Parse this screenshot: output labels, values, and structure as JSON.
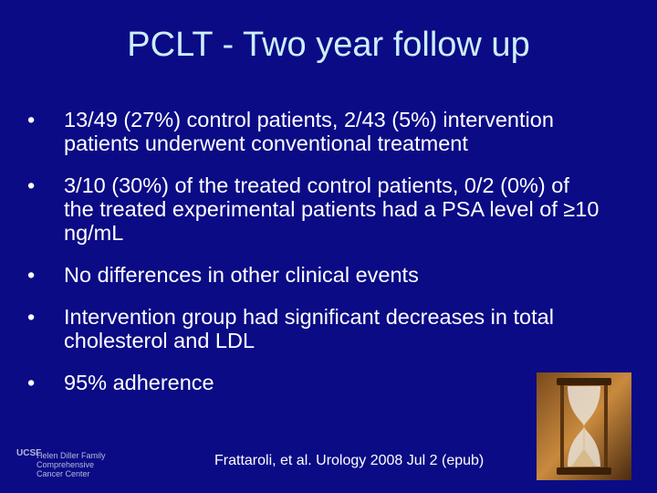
{
  "title": "PCLT - Two year follow up",
  "bullets": [
    "13/49 (27%) control patients, 2/43 (5%) intervention patients underwent conventional treatment",
    "3/10 (30%) of the treated control patients, 0/2 (0%) of the treated experimental patients had a PSA level of ≥10 ng/mL",
    "No differences in other clinical events",
    "Intervention group had significant decreases in total cholesterol and LDL",
    "95% adherence"
  ],
  "citation": "Frattaroli, et al. Urology 2008 Jul 2 (epub)",
  "logo": {
    "mark": "UCSF",
    "lines": [
      "Helen Diller Family",
      "Comprehensive",
      "Cancer Center"
    ]
  }
}
